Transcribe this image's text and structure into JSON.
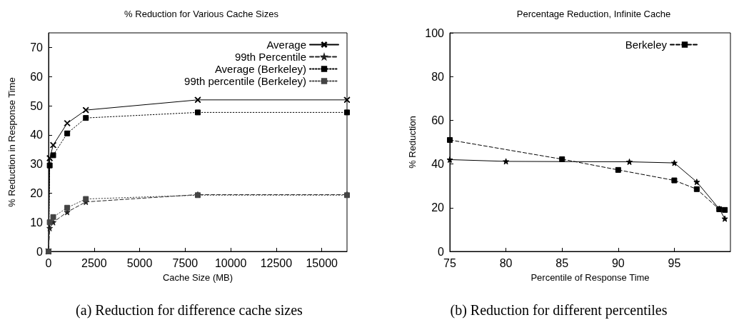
{
  "chart_data": [
    {
      "type": "line",
      "title": "% Reduction for Various Cache Sizes",
      "xlabel": "Cache Size (MB)",
      "ylabel": "% Reduction in Response Time",
      "annotations": [
        "(a) Reduction for difference cache sizes"
      ],
      "x": [
        0,
        64,
        256,
        1024,
        2048,
        8192,
        16384
      ],
      "series": [
        {
          "name": "Average",
          "color": "#000000",
          "marker": "cross",
          "line_style": "solid",
          "values": [
            0,
            32,
            36.5,
            44,
            48.5,
            52,
            52
          ]
        },
        {
          "name": "99th Percentile",
          "color": "#222222",
          "marker": "star",
          "line_style": "dashed",
          "values": [
            0,
            8,
            10,
            13.5,
            17,
            19.5,
            19.5
          ]
        },
        {
          "name": "Average (Berkeley)",
          "color": "#000000",
          "marker": "square",
          "line_style": "dotted",
          "values": [
            0,
            29.5,
            33,
            40.5,
            45.8,
            47.7,
            47.7
          ]
        },
        {
          "name": "99th percentile (Berkeley)",
          "color": "#444444",
          "marker": "square",
          "line_style": "dotted",
          "values": [
            0,
            10,
            11.8,
            15,
            18,
            19.3,
            19.3
          ]
        }
      ],
      "xlim": [
        0,
        16384
      ],
      "xticks": [
        0,
        2500,
        5000,
        7500,
        10000,
        12500,
        15000
      ],
      "ylim": [
        0,
        75
      ],
      "yticks": [
        0,
        10,
        20,
        30,
        40,
        50,
        60,
        70
      ],
      "grid": false,
      "legend": "top right"
    },
    {
      "type": "line",
      "title": "Percentage Reduction, Infinite Cache",
      "xlabel": "Percentile of Response Time",
      "ylabel": "% Reduction",
      "annotations": [
        "(b) Reduction for different percentiles"
      ],
      "series": [
        {
          "color": "#000000",
          "marker": "star",
          "line_style": "solid",
          "x": [
            75,
            80,
            91,
            95,
            97,
            99,
            99.5
          ],
          "values": [
            42,
            41.2,
            41,
            40.5,
            31.8,
            19.5,
            15
          ]
        },
        {
          "name": "Berkeley",
          "color": "#000000",
          "marker": "square",
          "line_style": "dashed",
          "x": [
            75,
            85,
            90,
            95,
            97,
            99,
            99.5
          ],
          "values": [
            51,
            42.2,
            37.3,
            32.5,
            28.5,
            19.3,
            19
          ]
        }
      ],
      "xlim": [
        75,
        100
      ],
      "xticks": [
        75,
        80,
        85,
        90,
        95
      ],
      "ylim": [
        0,
        100
      ],
      "yticks": [
        0,
        20,
        40,
        60,
        80,
        100
      ],
      "grid": false,
      "legend": "top right"
    }
  ]
}
